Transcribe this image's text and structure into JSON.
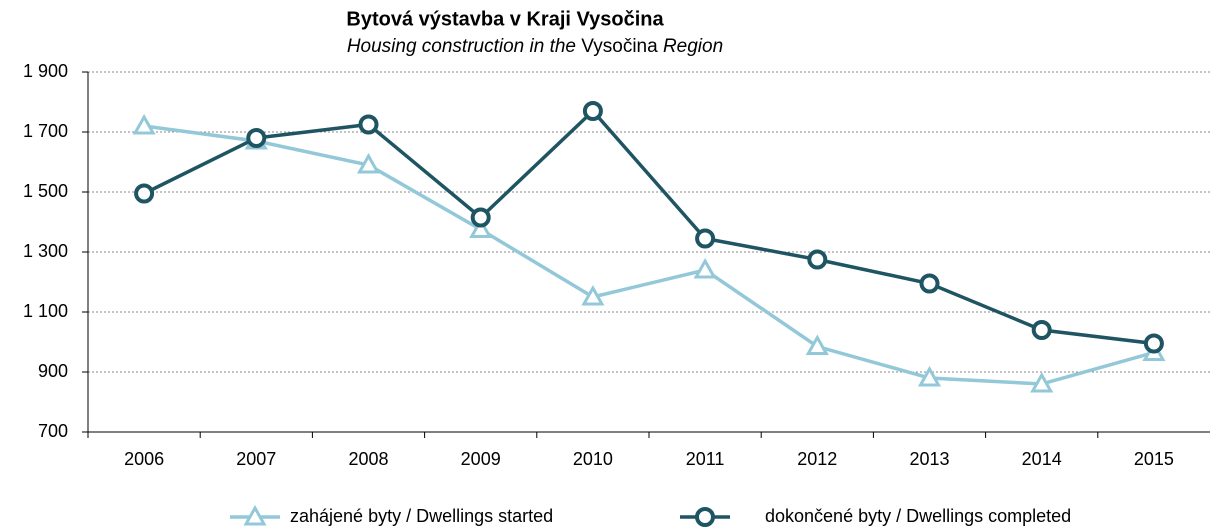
{
  "chart_data": {
    "type": "line",
    "title": "Bytová výstavba  v Kraji Vysočina",
    "subtitle": [
      "Housing construction in the",
      "Vysočina",
      "Region"
    ],
    "categories": [
      "2006",
      "2007",
      "2008",
      "2009",
      "2010",
      "2011",
      "2012",
      "2013",
      "2014",
      "2015"
    ],
    "series": [
      {
        "name": "zahájené byty / Dwellings started",
        "color": "#92c8d8",
        "marker": "triangle",
        "values": [
          1720,
          1670,
          1590,
          1375,
          1150,
          1240,
          985,
          880,
          860,
          965
        ]
      },
      {
        "name": "dokončené byty / Dwellings completed",
        "color": "#1f5563",
        "marker": "circle",
        "values": [
          1495,
          1680,
          1725,
          1415,
          1770,
          1345,
          1275,
          1195,
          1040,
          995
        ]
      }
    ],
    "ylim": [
      700,
      1900
    ],
    "yticks": [
      700,
      900,
      {
        "value": 1100,
        "label": "1 100"
      },
      {
        "value": 1300,
        "label": "1 300"
      },
      {
        "value": 1500,
        "label": "1 500"
      },
      {
        "value": 1700,
        "label": "1 700"
      },
      {
        "value": 1900,
        "label": "1 900"
      }
    ],
    "grid": true,
    "legend": "bottom"
  }
}
